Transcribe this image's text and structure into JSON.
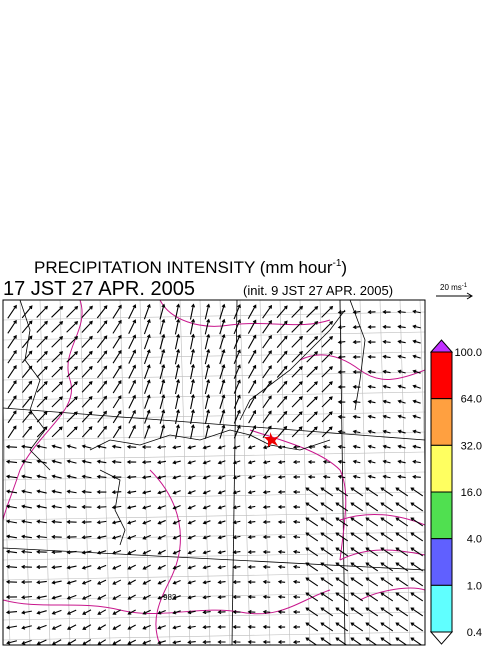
{
  "header": {
    "title": "PRECIPITATION INTENSITY (mm hour",
    "title_sup": "-1",
    "title_end": ")",
    "valid_time": "17 JST 27 APR. 2005",
    "init_time": "(init. 9 JST 27 APR. 2005)"
  },
  "vector_key": {
    "label": "20 ms",
    "label_sup": "-1"
  },
  "colorbar": {
    "labels": [
      "100.0",
      "64.0",
      "32.0",
      "16.0",
      "4.0",
      "1.0",
      "0.4"
    ]
  },
  "map": {
    "contour_label": "982"
  }
}
